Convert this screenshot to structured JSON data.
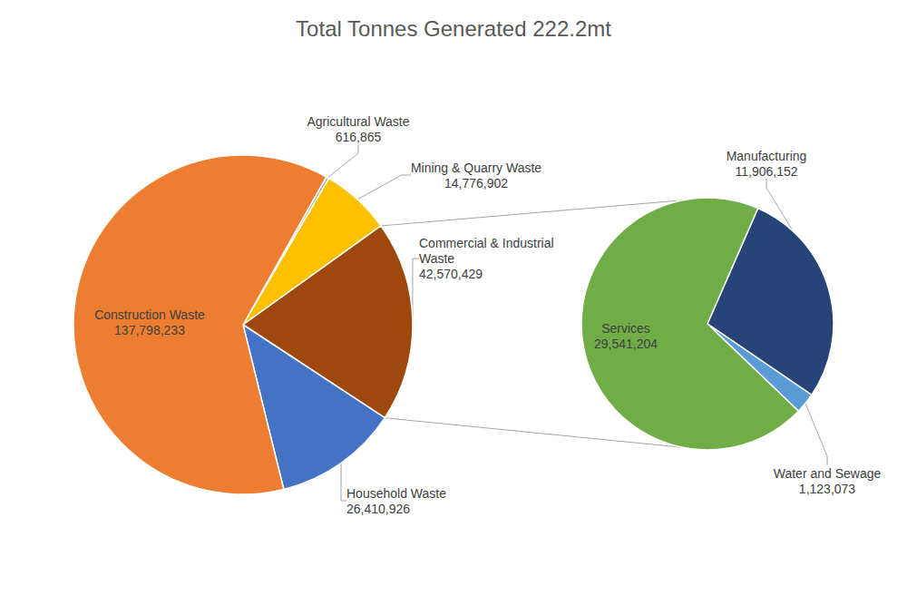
{
  "chart_data": [
    {
      "type": "pie",
      "title": "Total Tonnes Generated 222.2mt",
      "categories": [
        "Agricultural Waste",
        "Mining & Quarry Waste",
        "Commercial & Industrial Waste",
        "Household Waste",
        "Construction Waste"
      ],
      "values": [
        616865,
        14776902,
        42570429,
        26410926,
        137798233
      ],
      "value_labels": [
        "616,865",
        "14,776,902",
        "42,570,429",
        "26,410,926",
        "137,798,233"
      ],
      "colors": [
        "#a5a5a5",
        "#ffc000",
        "#9e480e",
        "#4472c4",
        "#ed7d31"
      ],
      "data_labels": true
    },
    {
      "type": "pie",
      "categories": [
        "Manufacturing",
        "Water and Sewage",
        "Services"
      ],
      "values": [
        11906152,
        1123073,
        29541204
      ],
      "value_labels": [
        "11,906,152",
        "1,123,073",
        "29,541,204"
      ],
      "colors": [
        "#264478",
        "#5b9bd5",
        "#70ad47"
      ],
      "data_labels": true
    }
  ]
}
